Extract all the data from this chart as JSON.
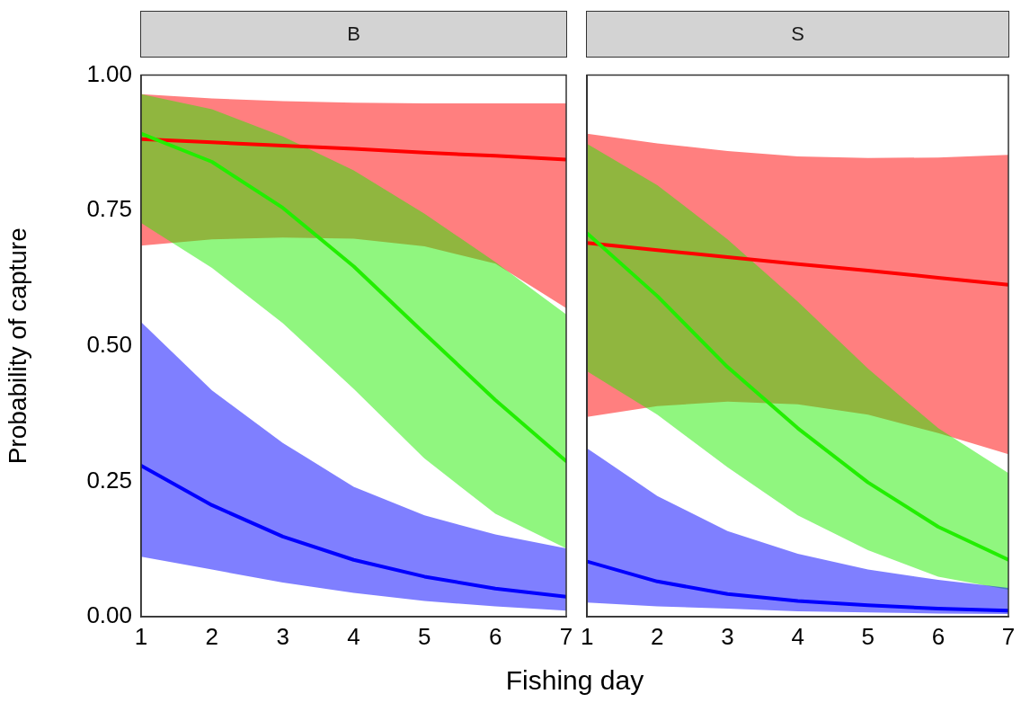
{
  "chart_data": [
    {
      "type": "line",
      "title": "B",
      "xlabel": "Fishing day",
      "ylabel": "Probability of capture",
      "xlim": [
        1,
        7
      ],
      "xticks": [
        1,
        2,
        3,
        4,
        5,
        6,
        7
      ],
      "ylim": [
        0,
        1
      ],
      "yticks": [
        {
          "value": 0,
          "label": "0.00"
        },
        {
          "value": 0.25,
          "label": "0.25"
        },
        {
          "value": 0.5,
          "label": "0.50"
        },
        {
          "value": 0.75,
          "label": "0.75"
        },
        {
          "value": 1,
          "label": "1.00"
        }
      ],
      "grid": false,
      "legend": false,
      "marker": "none",
      "line_style": "solid",
      "x": [
        1,
        2,
        3,
        4,
        5,
        6,
        7
      ],
      "series": [
        {
          "color": "#ff0000",
          "values": [
            0.882,
            0.876,
            0.87,
            0.864,
            0.857,
            0.851,
            0.844
          ],
          "lower": [
            0.685,
            0.697,
            0.7,
            0.698,
            0.684,
            0.652,
            0.57
          ],
          "upper": [
            0.965,
            0.957,
            0.952,
            0.949,
            0.948,
            0.948,
            0.948
          ]
        },
        {
          "color": "#22ee00",
          "values": [
            0.892,
            0.84,
            0.755,
            0.647,
            0.523,
            0.4,
            0.287
          ],
          "lower": [
            0.727,
            0.644,
            0.542,
            0.421,
            0.292,
            0.19,
            0.126
          ],
          "upper": [
            0.965,
            0.937,
            0.887,
            0.824,
            0.744,
            0.655,
            0.558
          ]
        },
        {
          "color": "#0000ff",
          "values": [
            0.279,
            0.206,
            0.148,
            0.105,
            0.074,
            0.052,
            0.037
          ],
          "lower": [
            0.111,
            0.087,
            0.063,
            0.044,
            0.029,
            0.019,
            0.011
          ],
          "upper": [
            0.544,
            0.418,
            0.321,
            0.24,
            0.187,
            0.152,
            0.126
          ]
        }
      ]
    },
    {
      "type": "line",
      "title": "S",
      "xlim": [
        1,
        7
      ],
      "xticks": [
        1,
        2,
        3,
        4,
        5,
        6,
        7
      ],
      "ylim": [
        0,
        1
      ],
      "tick_labels": "x",
      "grid": false,
      "legend": false,
      "marker": "none",
      "line_style": "solid",
      "x": [
        1,
        2,
        3,
        4,
        5,
        6,
        7
      ],
      "series": [
        {
          "color": "#ff0000",
          "values": [
            0.69,
            0.677,
            0.664,
            0.651,
            0.639,
            0.626,
            0.613
          ],
          "lower": [
            0.369,
            0.389,
            0.397,
            0.392,
            0.373,
            0.339,
            0.3
          ],
          "upper": [
            0.892,
            0.874,
            0.86,
            0.85,
            0.847,
            0.848,
            0.853
          ]
        },
        {
          "color": "#22ee00",
          "values": [
            0.708,
            0.592,
            0.461,
            0.348,
            0.248,
            0.166,
            0.105
          ],
          "lower": [
            0.453,
            0.373,
            0.276,
            0.187,
            0.123,
            0.074,
            0.05
          ],
          "upper": [
            0.873,
            0.797,
            0.697,
            0.582,
            0.458,
            0.348,
            0.265
          ]
        },
        {
          "color": "#0000ff",
          "values": [
            0.102,
            0.065,
            0.042,
            0.029,
            0.021,
            0.015,
            0.011
          ],
          "lower": [
            0.026,
            0.019,
            0.015,
            0.01,
            0.008,
            0.006,
            0.005
          ],
          "upper": [
            0.311,
            0.223,
            0.158,
            0.116,
            0.087,
            0.068,
            0.053
          ]
        }
      ]
    }
  ]
}
